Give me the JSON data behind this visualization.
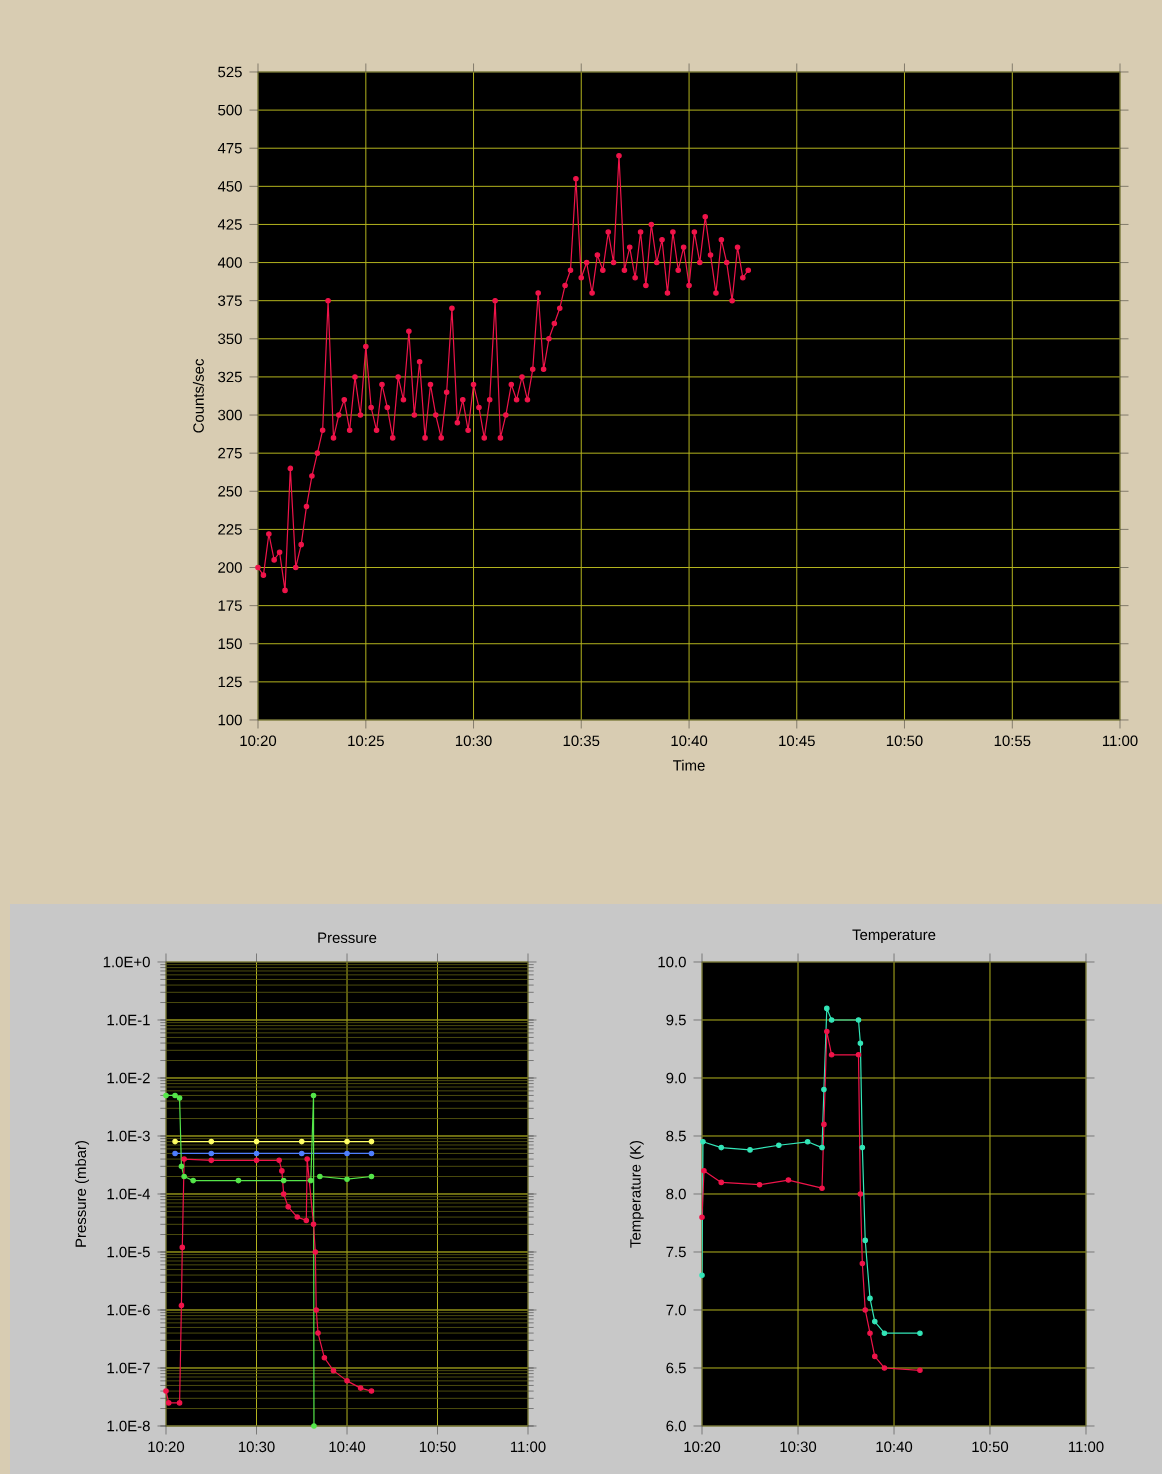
{
  "chart_data": [
    {
      "type": "line",
      "xlabel": "Time",
      "ylabel": "Counts/sec",
      "marker": "circle",
      "line_style": "solid",
      "grid": true,
      "xlim": [
        10.3333,
        11
      ],
      "ylim": [
        100,
        525
      ],
      "xticks": [
        {
          "value": 10.3333,
          "label": "10:20"
        },
        {
          "value": 10.4167,
          "label": "10:25"
        },
        {
          "value": 10.5,
          "label": "10:30"
        },
        {
          "value": 10.5833,
          "label": "10:35"
        },
        {
          "value": 10.6667,
          "label": "10:40"
        },
        {
          "value": 10.75,
          "label": "10:45"
        },
        {
          "value": 10.8333,
          "label": "10:50"
        },
        {
          "value": 10.9167,
          "label": "10:55"
        },
        {
          "value": 11,
          "label": "11:00"
        }
      ],
      "yticks": [
        100,
        125,
        150,
        175,
        200,
        225,
        250,
        275,
        300,
        325,
        350,
        375,
        400,
        425,
        450,
        475,
        500,
        525
      ],
      "x": [
        10.3333,
        10.3375,
        10.3417,
        10.3458,
        10.35,
        10.3542,
        10.3583,
        10.3625,
        10.3667,
        10.3708,
        10.375,
        10.3792,
        10.3833,
        10.3875,
        10.3917,
        10.3958,
        10.4,
        10.4042,
        10.4083,
        10.4125,
        10.4167,
        10.4208,
        10.425,
        10.4292,
        10.4333,
        10.4375,
        10.4417,
        10.4458,
        10.45,
        10.4542,
        10.4583,
        10.4625,
        10.4667,
        10.4708,
        10.475,
        10.4792,
        10.4833,
        10.4875,
        10.4917,
        10.4958,
        10.5,
        10.5042,
        10.5083,
        10.5125,
        10.5167,
        10.5208,
        10.525,
        10.5292,
        10.5333,
        10.5375,
        10.5417,
        10.5458,
        10.55,
        10.5542,
        10.5583,
        10.5625,
        10.5667,
        10.5708,
        10.575,
        10.5792,
        10.5833,
        10.5875,
        10.5917,
        10.5958,
        10.6,
        10.6042,
        10.6083,
        10.6125,
        10.6167,
        10.6208,
        10.625,
        10.6292,
        10.6333,
        10.6375,
        10.6417,
        10.6458,
        10.65,
        10.6542,
        10.6583,
        10.6625,
        10.6667,
        10.6708,
        10.675,
        10.6792,
        10.6833,
        10.6875,
        10.6917,
        10.6958,
        10.7,
        10.7042,
        10.7083,
        10.7125
      ],
      "series": [
        {
          "color": "#f0144a",
          "values": [
            200,
            195,
            222,
            205,
            210,
            185,
            265,
            200,
            215,
            240,
            260,
            275,
            290,
            375,
            285,
            300,
            310,
            290,
            325,
            300,
            345,
            305,
            290,
            320,
            305,
            285,
            325,
            310,
            355,
            300,
            335,
            285,
            320,
            300,
            285,
            315,
            370,
            295,
            310,
            290,
            320,
            305,
            285,
            310,
            375,
            285,
            300,
            320,
            310,
            325,
            310,
            330,
            380,
            330,
            350,
            360,
            370,
            385,
            395,
            455,
            390,
            400,
            380,
            405,
            395,
            420,
            400,
            470,
            395,
            410,
            390,
            420,
            385,
            425,
            400,
            415,
            380,
            420,
            395,
            410,
            385,
            420,
            400,
            430,
            405,
            380,
            415,
            400,
            375,
            410,
            390,
            395
          ]
        }
      ]
    },
    {
      "type": "line",
      "title": "Pressure",
      "ylabel": "Pressure (mbar)",
      "marker": "circle",
      "line_style": "solid",
      "grid": true,
      "log": "y",
      "xlim": [
        10.3333,
        11
      ],
      "ylim": [
        1e-08,
        1
      ],
      "xticks": [
        {
          "value": 10.3333,
          "label": "10:20"
        },
        {
          "value": 10.5,
          "label": "10:30"
        },
        {
          "value": 10.6667,
          "label": "10:40"
        },
        {
          "value": 10.8333,
          "label": "10:50"
        },
        {
          "value": 11,
          "label": "11:00"
        }
      ],
      "yticks": [
        {
          "value": 1e-08,
          "label": "1.0E-8"
        },
        {
          "value": 1e-07,
          "label": "1.0E-7"
        },
        {
          "value": 1e-06,
          "label": "1.0E-6"
        },
        {
          "value": 1e-05,
          "label": "1.0E-5"
        },
        {
          "value": 0.0001,
          "label": "1.0E-4"
        },
        {
          "value": 0.001,
          "label": "1.0E-3"
        },
        {
          "value": 0.01,
          "label": "1.0E-2"
        },
        {
          "value": 0.1,
          "label": "1.0E-1"
        },
        {
          "value": 1,
          "label": "1.0E+0"
        }
      ],
      "series": [
        {
          "color": "#ffff66",
          "x": [
            10.35,
            10.4167,
            10.5,
            10.5833,
            10.6667,
            10.7117
          ],
          "values": [
            0.0008,
            0.0008,
            0.0008,
            0.0008,
            0.0008,
            0.0008
          ]
        },
        {
          "color": "#4f7fff",
          "x": [
            10.35,
            10.4167,
            10.5,
            10.5833,
            10.6667,
            10.7117
          ],
          "values": [
            0.0005,
            0.0005,
            0.0005,
            0.0005,
            0.0005,
            0.0005
          ]
        },
        {
          "color": "#55e64a",
          "x": [
            10.3333,
            10.35,
            10.3583,
            10.3617,
            10.3667,
            10.3833,
            10.4667,
            10.55,
            10.6,
            10.605,
            10.6058,
            10.61,
            10.6167,
            10.6667,
            10.7117
          ],
          "values": [
            0.005,
            0.005,
            0.0045,
            0.0003,
            0.0002,
            0.00017,
            0.00017,
            0.00017,
            0.00017,
            0.005,
            1e-08,
            null,
            0.0002,
            0.00018,
            0.0002
          ]
        },
        {
          "color": "#f0144a",
          "x": [
            10.3333,
            10.3383,
            10.3583,
            10.3617,
            10.3633,
            10.3667,
            10.4167,
            10.5,
            10.5417,
            10.5467,
            10.55,
            10.5583,
            10.575,
            10.5917,
            10.5933,
            10.605,
            10.6083,
            10.61,
            10.6133,
            10.625,
            10.6417,
            10.6667,
            10.6917,
            10.7117
          ],
          "values": [
            4e-08,
            2.5e-08,
            2.5e-08,
            1.2e-06,
            1.2e-05,
            0.0004,
            0.00038,
            0.00038,
            0.00038,
            0.00025,
            0.0001,
            6e-05,
            4e-05,
            3.5e-05,
            0.0004,
            3e-05,
            1e-05,
            1e-06,
            4e-07,
            1.5e-07,
            9e-08,
            6e-08,
            4.5e-08,
            4e-08
          ]
        }
      ]
    },
    {
      "type": "line",
      "title": "Temperature",
      "ylabel": "Temperature (K)",
      "marker": "circle",
      "line_style": "solid",
      "grid": true,
      "xlim": [
        10.3333,
        11
      ],
      "ylim": [
        6,
        10
      ],
      "xticks": [
        {
          "value": 10.3333,
          "label": "10:20"
        },
        {
          "value": 10.5,
          "label": "10:30"
        },
        {
          "value": 10.6667,
          "label": "10:40"
        },
        {
          "value": 10.8333,
          "label": "10:50"
        },
        {
          "value": 11,
          "label": "11:00"
        }
      ],
      "yticks": [
        {
          "value": 6,
          "label": "6.0"
        },
        6.5,
        {
          "value": 7,
          "label": "7.0"
        },
        7.5,
        {
          "value": 8,
          "label": "8.0"
        },
        8.5,
        {
          "value": 9,
          "label": "9.0"
        },
        9.5,
        {
          "value": 10,
          "label": "10.0"
        }
      ],
      "series": [
        {
          "color": "#33e6b8",
          "x": [
            10.3333,
            10.335,
            10.3667,
            10.4167,
            10.4667,
            10.5167,
            10.5417,
            10.545,
            10.55,
            10.5583,
            10.605,
            10.6083,
            10.6117,
            10.6167,
            10.625,
            10.6333,
            10.65,
            10.7117
          ],
          "values": [
            7.3,
            8.45,
            8.4,
            8.38,
            8.42,
            8.45,
            8.4,
            8.9,
            9.6,
            9.5,
            9.5,
            9.3,
            8.4,
            7.6,
            7.1,
            6.9,
            6.8,
            6.8
          ]
        },
        {
          "color": "#f0144a",
          "x": [
            10.3333,
            10.3367,
            10.3667,
            10.4333,
            10.4833,
            10.5417,
            10.545,
            10.55,
            10.5583,
            10.605,
            10.6083,
            10.6117,
            10.6167,
            10.625,
            10.6333,
            10.65,
            10.7117
          ],
          "values": [
            7.8,
            8.2,
            8.1,
            8.08,
            8.12,
            8.05,
            8.6,
            9.4,
            9.2,
            9.2,
            8.0,
            7.4,
            7.0,
            6.8,
            6.6,
            6.5,
            6.48
          ]
        }
      ]
    }
  ]
}
